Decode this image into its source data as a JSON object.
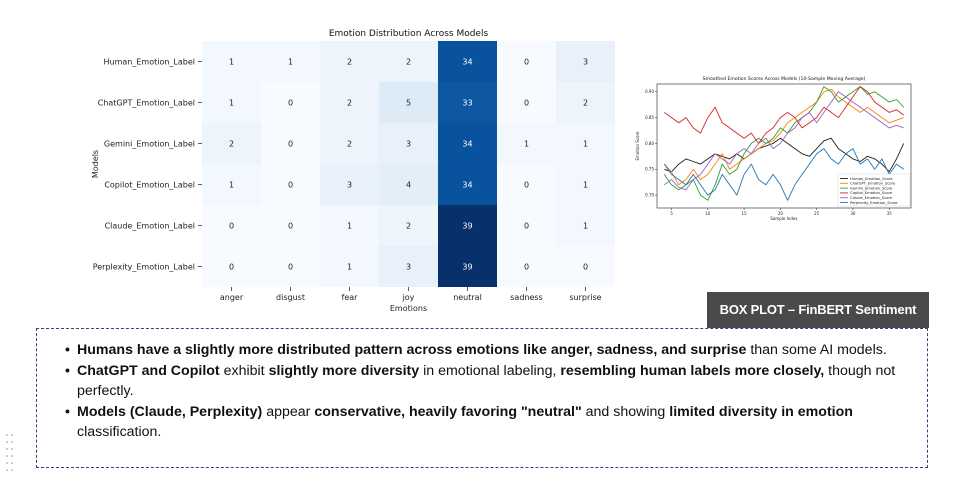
{
  "heatmap": {
    "title": "Emotion Distribution Across Models",
    "xlabel": "Emotions",
    "ylabel": "Models",
    "columns": [
      "anger",
      "disgust",
      "fear",
      "joy",
      "neutral",
      "sadness",
      "surprise"
    ],
    "rows": [
      "Human_Emotion_Label",
      "ChatGPT_Emotion_Label",
      "Gemini_Emotion_Label",
      "Copilot_Emotion_Label",
      "Claude_Emotion_Label",
      "Perplexity_Emotion_Label"
    ],
    "values": [
      [
        1,
        1,
        2,
        2,
        34,
        0,
        3
      ],
      [
        1,
        0,
        2,
        5,
        33,
        0,
        2
      ],
      [
        2,
        0,
        2,
        3,
        34,
        1,
        1
      ],
      [
        1,
        0,
        3,
        4,
        34,
        0,
        1
      ],
      [
        0,
        0,
        1,
        2,
        39,
        0,
        1
      ],
      [
        0,
        0,
        1,
        3,
        39,
        0,
        0
      ]
    ],
    "colormap": "Blues",
    "vmin": 0,
    "vmax": 39
  },
  "chart_data": {
    "type": "line",
    "title": "Smoothed Emotion Scores Across Models (10-Sample Moving Average)",
    "xlabel": "Sample Index",
    "ylabel": "Emotion Score",
    "x": [
      4,
      5,
      6,
      7,
      8,
      9,
      10,
      11,
      12,
      13,
      14,
      15,
      16,
      17,
      18,
      19,
      20,
      21,
      22,
      23,
      24,
      25,
      26,
      27,
      28,
      29,
      30,
      31,
      32,
      33,
      34,
      35,
      36,
      37
    ],
    "xlim": [
      3,
      38
    ],
    "ylim": [
      0.675,
      0.915
    ],
    "xticks": [
      5,
      10,
      15,
      20,
      25,
      30,
      35
    ],
    "yticks": [
      0.7,
      0.75,
      0.8,
      0.85,
      0.9
    ],
    "ytick_labels": [
      "0.70",
      "0.75",
      "0.80",
      "0.85",
      "0.90"
    ],
    "legend": "lower right",
    "grid": false,
    "series": [
      {
        "name": "Human_Emotion_Score",
        "color": "#1f1f1f",
        "values": [
          0.75,
          0.745,
          0.76,
          0.77,
          0.765,
          0.76,
          0.77,
          0.78,
          0.775,
          0.77,
          0.78,
          0.77,
          0.78,
          0.79,
          0.795,
          0.8,
          0.81,
          0.8,
          0.79,
          0.78,
          0.775,
          0.79,
          0.805,
          0.81,
          0.79,
          0.78,
          0.77,
          0.765,
          0.775,
          0.77,
          0.76,
          0.745,
          0.77,
          0.8
        ]
      },
      {
        "name": "ChatGPT_Emotion_Score",
        "color": "#ff7f0e",
        "values": [
          0.76,
          0.745,
          0.72,
          0.73,
          0.75,
          0.73,
          0.74,
          0.76,
          0.78,
          0.75,
          0.76,
          0.77,
          0.78,
          0.79,
          0.8,
          0.805,
          0.82,
          0.84,
          0.85,
          0.86,
          0.87,
          0.88,
          0.9,
          0.905,
          0.89,
          0.88,
          0.87,
          0.86,
          0.87,
          0.86,
          0.85,
          0.84,
          0.845,
          0.85
        ]
      },
      {
        "name": "Gemini_Emotion_Score",
        "color": "#2ca02c",
        "values": [
          0.74,
          0.72,
          0.71,
          0.72,
          0.73,
          0.7,
          0.69,
          0.72,
          0.76,
          0.74,
          0.75,
          0.78,
          0.8,
          0.81,
          0.8,
          0.81,
          0.83,
          0.82,
          0.84,
          0.85,
          0.86,
          0.88,
          0.91,
          0.9,
          0.88,
          0.89,
          0.9,
          0.91,
          0.895,
          0.9,
          0.89,
          0.88,
          0.885,
          0.87
        ]
      },
      {
        "name": "Copilot_Emotion_Score",
        "color": "#d62728",
        "values": [
          0.86,
          0.85,
          0.84,
          0.85,
          0.83,
          0.82,
          0.85,
          0.87,
          0.84,
          0.83,
          0.82,
          0.81,
          0.82,
          0.8,
          0.82,
          0.83,
          0.85,
          0.86,
          0.85,
          0.83,
          0.84,
          0.85,
          0.87,
          0.86,
          0.85,
          0.87,
          0.89,
          0.91,
          0.9,
          0.88,
          0.87,
          0.86,
          0.865,
          0.855
        ]
      },
      {
        "name": "Claude_Emotion_Score",
        "color": "#9467bd",
        "values": [
          0.72,
          0.73,
          0.715,
          0.71,
          0.73,
          0.74,
          0.76,
          0.78,
          0.77,
          0.76,
          0.78,
          0.79,
          0.78,
          0.8,
          0.81,
          0.79,
          0.8,
          0.82,
          0.83,
          0.85,
          0.86,
          0.84,
          0.86,
          0.88,
          0.9,
          0.89,
          0.88,
          0.87,
          0.86,
          0.85,
          0.84,
          0.83,
          0.835,
          0.83
        ]
      },
      {
        "name": "Perplexity_Emotion_Score",
        "color": "#1f77b4",
        "values": [
          0.76,
          0.74,
          0.73,
          0.72,
          0.74,
          0.72,
          0.7,
          0.71,
          0.74,
          0.72,
          0.7,
          0.74,
          0.76,
          0.73,
          0.72,
          0.74,
          0.72,
          0.69,
          0.72,
          0.74,
          0.76,
          0.78,
          0.79,
          0.77,
          0.76,
          0.78,
          0.79,
          0.76,
          0.77,
          0.75,
          0.77,
          0.74,
          0.76,
          0.75
        ]
      }
    ]
  },
  "box_plot_label": "BOX PLOT – FinBERT Sentiment",
  "findings": [
    {
      "parts": [
        {
          "b": true,
          "t": "Humans have a slightly more distributed pattern across emotions like anger, sadness, and surprise"
        },
        {
          "b": false,
          "t": " than some AI models."
        }
      ]
    },
    {
      "parts": [
        {
          "b": true,
          "t": "ChatGPT and Copilot"
        },
        {
          "b": false,
          "t": " exhibit "
        },
        {
          "b": true,
          "t": "slightly more diversity"
        },
        {
          "b": false,
          "t": " in emotional labeling, "
        },
        {
          "b": true,
          "t": "resembling human labels more closely,"
        },
        {
          "b": false,
          "t": " though not perfectly."
        }
      ]
    },
    {
      "parts": [
        {
          "b": true,
          "t": "Models (Claude, Perplexity)"
        },
        {
          "b": false,
          "t": " appear "
        },
        {
          "b": true,
          "t": "conservative, heavily favoring \"neutral\""
        },
        {
          "b": false,
          "t": " and showing "
        },
        {
          "b": true,
          "t": "limited diversity in emotion"
        },
        {
          "b": false,
          "t": " classification."
        }
      ]
    }
  ]
}
